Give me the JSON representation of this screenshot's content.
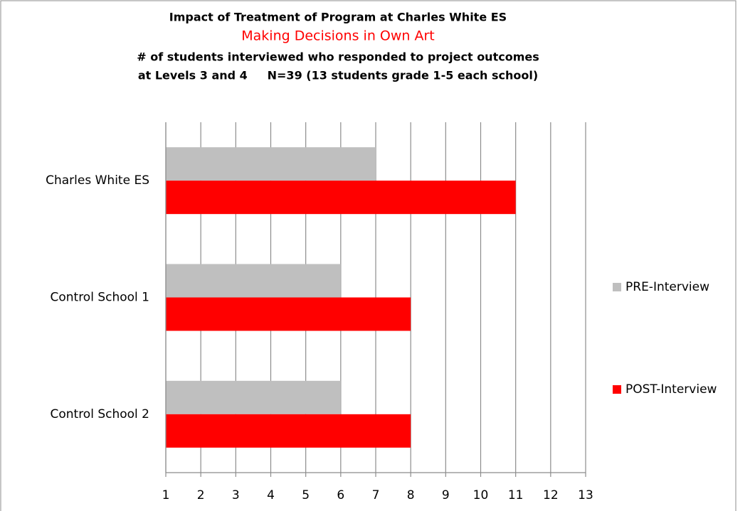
{
  "chart_data": {
    "type": "bar",
    "orientation": "horizontal",
    "title": "Impact of Treatment of Program at Charles White ES",
    "subtitle": "Making Decisions in Own Art",
    "description": [
      "# of students interviewed who responded to project outcomes",
      "at Levels 3 and 4     N=39 (13 students grade 1-5 each school)"
    ],
    "categories": [
      "Charles White ES",
      "Control School 1",
      "Control School 2"
    ],
    "series": [
      {
        "name": "PRE-Interview",
        "color": "#bfbfbf",
        "values": [
          7,
          6,
          6
        ]
      },
      {
        "name": "POST-Interview",
        "color": "#ff0000",
        "values": [
          11,
          8,
          8
        ]
      }
    ],
    "xlim": [
      1,
      13
    ],
    "xticks": [
      1,
      2,
      3,
      4,
      5,
      6,
      7,
      8,
      9,
      10,
      11,
      12,
      13
    ],
    "grid": true,
    "legend": "right"
  }
}
